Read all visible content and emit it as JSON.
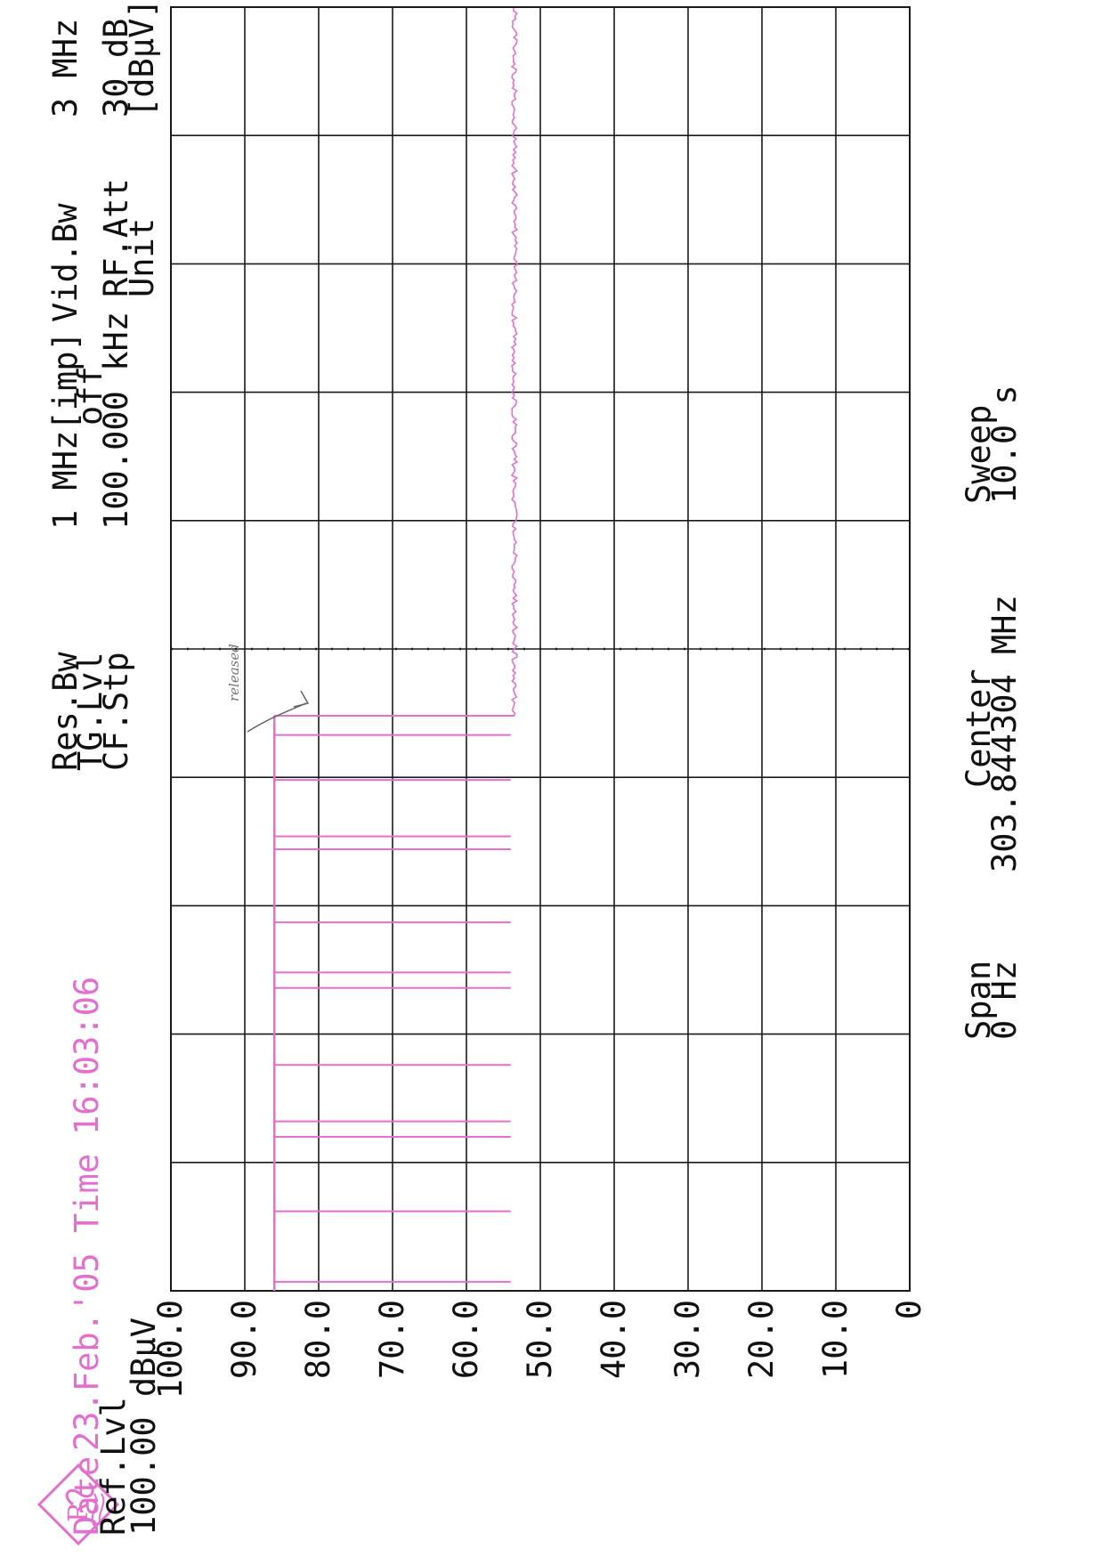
{
  "header": {
    "date_label": "Date",
    "date_value": "23.Feb.'05",
    "time_label": "Time",
    "time_value": "16:03:06",
    "ref_lvl_label": "Ref.Lvl",
    "ref_lvl_value": "100.00 dBµV"
  },
  "settings": {
    "res_bw_label": "Res.Bw",
    "tg_lvl_label": "TG.Lvl",
    "cf_stp_label": "CF.Stp",
    "res_bw_value": "1 MHz[imp]",
    "tg_lvl_value": "off",
    "cf_stp_value": "100.000 kHz",
    "vid_bw_label": "Vid.Bw",
    "vid_bw_value": "3 MHz",
    "rf_att_label": "RF.Att",
    "rf_att_value": "30 dB",
    "unit_label": "Unit",
    "unit_value": "[dBµV]"
  },
  "footer": {
    "span_label": "Span",
    "span_value": "0 Hz",
    "center_label": "Center",
    "center_value": "303.844304 MHz",
    "sweep_label": "Sweep",
    "sweep_value": "10.0 s"
  },
  "annotation": "released",
  "colors": {
    "trace": "#e36fcf",
    "grid": "#1a1a1a",
    "background": "#ffffff"
  },
  "chart_data": {
    "type": "line",
    "y_tick_labels": [
      "0",
      "10.0",
      "20.0",
      "30.0",
      "40.0",
      "50.0",
      "60.0",
      "70.0",
      "80.0",
      "90.0",
      "100.0"
    ],
    "ylim": [
      0,
      100
    ],
    "xlim": [
      0,
      10
    ],
    "grid": true,
    "divisions": 10,
    "center_marker_x": 5,
    "series": [
      {
        "base_level": 86,
        "dip_level": 54,
        "dip_times": [
          0.07,
          0.62,
          1.2,
          1.32,
          1.76,
          2.36,
          2.48,
          2.87,
          3.44,
          3.54,
          3.98,
          4.33
        ],
        "release_time": 4.48,
        "noise_level": 53.5
      }
    ]
  }
}
